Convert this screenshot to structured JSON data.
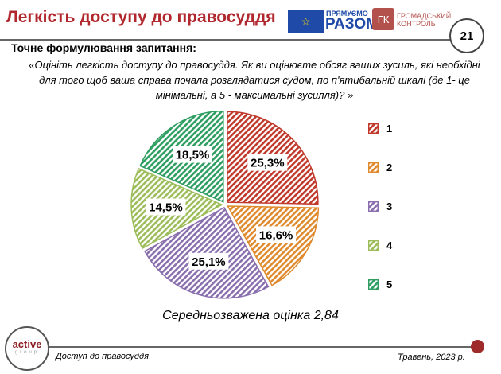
{
  "header": {
    "title": "Легкість доступу до правосуддя",
    "page": "21",
    "logo_eu": "☆",
    "logo_razom_small": "ПРЯМУЄМО",
    "logo_razom_big": "РАЗОМ",
    "logo_gk": "ГК",
    "logo_gk_line1": "ГРОМАДСЬКИЙ",
    "logo_gk_line2": "КОНТРОЛЬ"
  },
  "question": {
    "heading": "Точне формулювання запитання:",
    "text": "«Оцініть легкість доступу  до правосуддя. Як ви оцінюєте обсяг ваших зусиль, які необхідні для того щоб ваша справа почала розглядатися судом, по п'ятибальній шкалі (де 1- це мінімальні, а 5 - максимальні зусилля)? »"
  },
  "average": "Середньозважена оцінка 2,84",
  "footer": {
    "logo_main": "active",
    "logo_sub": "group",
    "left": "Доступ до правосуддя",
    "right": "Травень, 2023 р."
  },
  "chart_data": {
    "type": "pie",
    "categories": [
      "1",
      "2",
      "3",
      "4",
      "5"
    ],
    "values": [
      25.3,
      16.6,
      25.1,
      14.5,
      18.5
    ],
    "labels": [
      "25,3%",
      "16,6%",
      "25,1%",
      "14,5%",
      "18,5%"
    ],
    "colors": [
      "#c0392b",
      "#e08a2e",
      "#8a6fae",
      "#9dbd5a",
      "#2f9e62"
    ],
    "legend": "right",
    "start": "top",
    "direction": "clockwise"
  }
}
